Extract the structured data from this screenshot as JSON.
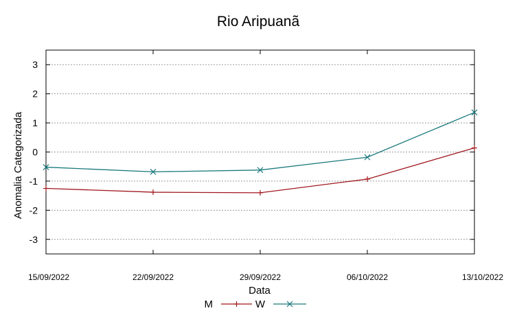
{
  "chart_data": {
    "type": "line",
    "title": "Rio Aripuanã",
    "xlabel": "Data",
    "ylabel": "Anomalia Categorizada",
    "categories": [
      "15/09/2022",
      "22/09/2022",
      "29/09/2022",
      "06/10/2022",
      "13/10/2022"
    ],
    "ylim": [
      -3.5,
      3.5
    ],
    "yticks": [
      -3,
      -2,
      -1,
      0,
      1,
      2,
      3
    ],
    "ytick_labels": [
      "-3",
      "-2",
      "-1",
      "0",
      "1",
      "2",
      "3"
    ],
    "grid": true,
    "legend_position": "bottom",
    "series": [
      {
        "name": "M",
        "values": [
          -1.25,
          -1.38,
          -1.4,
          -0.93,
          0.14
        ],
        "color": "#a0161c",
        "marker": "plus"
      },
      {
        "name": "W",
        "values": [
          -0.52,
          -0.68,
          -0.62,
          -0.18,
          1.36
        ],
        "color": "#19787c",
        "marker": "cross"
      }
    ]
  }
}
